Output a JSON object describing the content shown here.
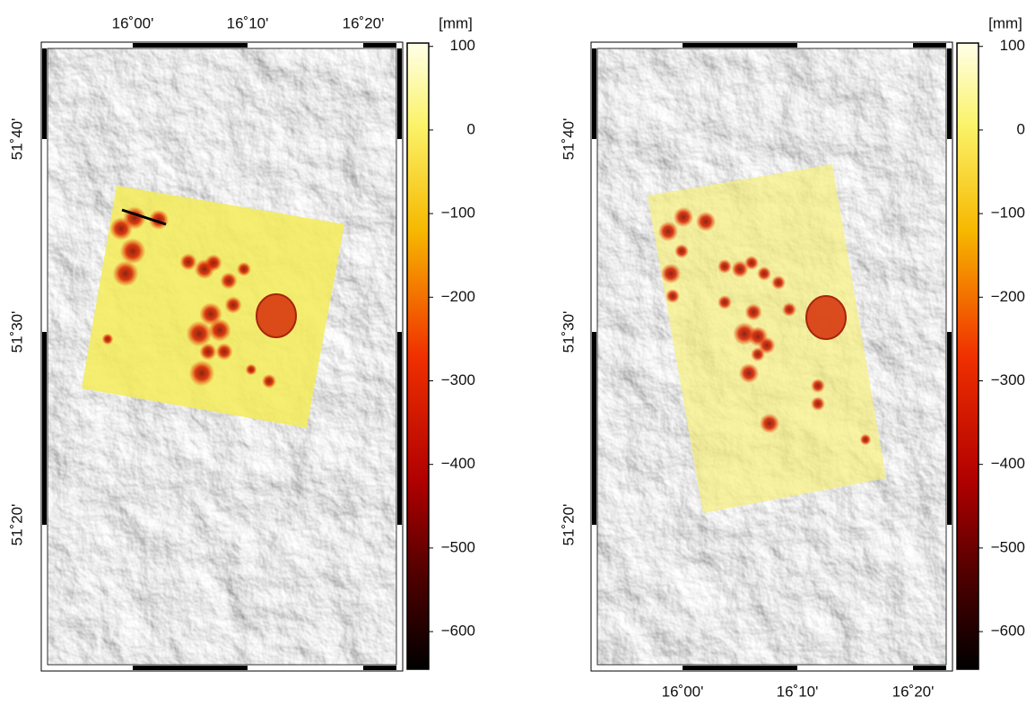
{
  "panels": [
    {
      "lon_labels": [
        "16˚00'",
        "16˚10'",
        "16˚20'"
      ],
      "lat_labels": [
        "51˚40'",
        "51˚30'",
        "51˚20'"
      ],
      "colorbar": {
        "unit": "[mm]",
        "lim": [
          -645,
          104
        ],
        "ticks": [
          100,
          0,
          {
            "value": -100,
            "label": "−100"
          },
          {
            "value": -200,
            "label": "−200"
          },
          {
            "value": -300,
            "label": "−300"
          },
          {
            "value": -400,
            "label": "−400"
          },
          {
            "value": -500,
            "label": "−500"
          },
          {
            "value": -600,
            "label": "−600"
          }
        ]
      }
    },
    {
      "lon_labels": [
        "16˚00'",
        "16˚10'",
        "16˚20'"
      ],
      "lat_labels": [
        "51˚40'",
        "51˚30'",
        "51˚20'"
      ],
      "colorbar": {
        "unit": "[mm]",
        "lim": [
          -645,
          104
        ],
        "ticks": [
          100,
          0,
          {
            "value": -100,
            "label": "−100"
          },
          {
            "value": -200,
            "label": "−200"
          },
          {
            "value": -300,
            "label": "−300"
          },
          {
            "value": -400,
            "label": "−400"
          },
          {
            "value": -500,
            "label": "−500"
          },
          {
            "value": -600,
            "label": "−600"
          }
        ]
      }
    }
  ]
}
